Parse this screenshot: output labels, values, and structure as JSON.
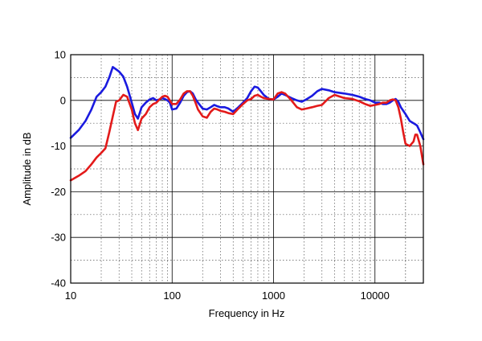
{
  "chart_data": {
    "type": "line",
    "xlabel": "Frequency in Hz",
    "ylabel": "Amplitude in dB",
    "x_scale": "log",
    "xlim": [
      10,
      30000
    ],
    "ylim": [
      -40,
      10
    ],
    "x_tick_labels": [
      "10",
      "100",
      "1000",
      "10000"
    ],
    "y_tick_labels": [
      "10",
      "0",
      "-10",
      "-20",
      "-30",
      "-40"
    ],
    "grid": true,
    "series": [
      {
        "color": "#1a1adf",
        "points": [
          [
            10,
            -8.2
          ],
          [
            12,
            -6.5
          ],
          [
            14,
            -4.5
          ],
          [
            16,
            -2
          ],
          [
            18,
            0.8
          ],
          [
            20,
            1.8
          ],
          [
            22,
            3
          ],
          [
            24,
            5
          ],
          [
            26,
            7.3
          ],
          [
            28,
            6.8
          ],
          [
            30,
            6.3
          ],
          [
            33,
            5.2
          ],
          [
            36,
            3
          ],
          [
            40,
            -0.5
          ],
          [
            43,
            -3
          ],
          [
            46,
            -4
          ],
          [
            50,
            -1.5
          ],
          [
            55,
            -0.5
          ],
          [
            60,
            0.2
          ],
          [
            65,
            0.5
          ],
          [
            70,
            0
          ],
          [
            75,
            0.2
          ],
          [
            80,
            0.5
          ],
          [
            85,
            0.3
          ],
          [
            90,
            0
          ],
          [
            95,
            -0.5
          ],
          [
            100,
            -2
          ],
          [
            110,
            -1.8
          ],
          [
            120,
            -0.5
          ],
          [
            130,
            1
          ],
          [
            140,
            1.8
          ],
          [
            150,
            2
          ],
          [
            160,
            1.5
          ],
          [
            170,
            0.3
          ],
          [
            180,
            -0.5
          ],
          [
            200,
            -1.8
          ],
          [
            220,
            -2
          ],
          [
            240,
            -1.5
          ],
          [
            260,
            -1
          ],
          [
            280,
            -1.3
          ],
          [
            300,
            -1.5
          ],
          [
            330,
            -1.5
          ],
          [
            360,
            -1.8
          ],
          [
            400,
            -2.5
          ],
          [
            450,
            -1.5
          ],
          [
            500,
            -0.5
          ],
          [
            550,
            0.5
          ],
          [
            600,
            2
          ],
          [
            650,
            3
          ],
          [
            700,
            2.8
          ],
          [
            750,
            2
          ],
          [
            800,
            1.2
          ],
          [
            900,
            0.3
          ],
          [
            1000,
            0.2
          ],
          [
            1100,
            0.8
          ],
          [
            1200,
            1.5
          ],
          [
            1300,
            1.2
          ],
          [
            1500,
            0.5
          ],
          [
            1700,
            0
          ],
          [
            1900,
            -0.3
          ],
          [
            2100,
            0.2
          ],
          [
            2400,
            1
          ],
          [
            2700,
            2
          ],
          [
            3000,
            2.5
          ],
          [
            3500,
            2.2
          ],
          [
            4000,
            1.8
          ],
          [
            5000,
            1.5
          ],
          [
            6000,
            1.2
          ],
          [
            7000,
            0.8
          ],
          [
            8000,
            0.3
          ],
          [
            9000,
            0
          ],
          [
            10000,
            -0.5
          ],
          [
            11000,
            -0.5
          ],
          [
            12000,
            -0.8
          ],
          [
            13000,
            -0.8
          ],
          [
            14000,
            -0.5
          ],
          [
            15000,
            0
          ],
          [
            16000,
            0.3
          ],
          [
            17000,
            -0.3
          ],
          [
            18000,
            -1.5
          ],
          [
            20000,
            -3
          ],
          [
            22000,
            -4.5
          ],
          [
            24000,
            -5
          ],
          [
            26000,
            -5.5
          ],
          [
            28000,
            -7
          ],
          [
            30000,
            -8.5
          ]
        ]
      },
      {
        "color": "#e31a1a",
        "points": [
          [
            10,
            -17.5
          ],
          [
            12,
            -16.5
          ],
          [
            14,
            -15.5
          ],
          [
            16,
            -14
          ],
          [
            18,
            -12.5
          ],
          [
            20,
            -11.5
          ],
          [
            22,
            -10.5
          ],
          [
            24,
            -7
          ],
          [
            26,
            -3.5
          ],
          [
            28,
            -0.3
          ],
          [
            30,
            0
          ],
          [
            33,
            1.2
          ],
          [
            36,
            0.8
          ],
          [
            40,
            -2
          ],
          [
            43,
            -5
          ],
          [
            46,
            -6.5
          ],
          [
            50,
            -4
          ],
          [
            55,
            -3
          ],
          [
            60,
            -1.5
          ],
          [
            65,
            -0.8
          ],
          [
            70,
            -0.5
          ],
          [
            75,
            0.2
          ],
          [
            80,
            0.8
          ],
          [
            85,
            1
          ],
          [
            90,
            0.8
          ],
          [
            95,
            0
          ],
          [
            100,
            -0.8
          ],
          [
            110,
            -0.8
          ],
          [
            120,
            0.2
          ],
          [
            130,
            1.5
          ],
          [
            140,
            2
          ],
          [
            150,
            2
          ],
          [
            160,
            1
          ],
          [
            170,
            -0.5
          ],
          [
            180,
            -2
          ],
          [
            200,
            -3.5
          ],
          [
            220,
            -3.8
          ],
          [
            240,
            -2.5
          ],
          [
            260,
            -1.8
          ],
          [
            280,
            -2
          ],
          [
            300,
            -2.3
          ],
          [
            330,
            -2.5
          ],
          [
            360,
            -2.8
          ],
          [
            400,
            -3
          ],
          [
            450,
            -1.8
          ],
          [
            500,
            -0.8
          ],
          [
            550,
            0
          ],
          [
            600,
            0.3
          ],
          [
            650,
            1
          ],
          [
            700,
            1.2
          ],
          [
            750,
            0.8
          ],
          [
            800,
            0.5
          ],
          [
            900,
            0.3
          ],
          [
            1000,
            0.2
          ],
          [
            1100,
            1.5
          ],
          [
            1200,
            1.8
          ],
          [
            1300,
            1.5
          ],
          [
            1500,
            0
          ],
          [
            1700,
            -1.5
          ],
          [
            1900,
            -2
          ],
          [
            2100,
            -1.8
          ],
          [
            2400,
            -1.5
          ],
          [
            2700,
            -1.2
          ],
          [
            3000,
            -1
          ],
          [
            3500,
            0.5
          ],
          [
            4000,
            1.2
          ],
          [
            5000,
            0.5
          ],
          [
            6000,
            0.3
          ],
          [
            7000,
            -0.2
          ],
          [
            8000,
            -0.8
          ],
          [
            9000,
            -1.2
          ],
          [
            10000,
            -1
          ],
          [
            11000,
            -0.8
          ],
          [
            12000,
            -0.5
          ],
          [
            13000,
            -0.5
          ],
          [
            14000,
            0
          ],
          [
            15000,
            0.2
          ],
          [
            16000,
            0
          ],
          [
            17000,
            -1.5
          ],
          [
            18000,
            -4
          ],
          [
            19000,
            -7
          ],
          [
            20000,
            -9.5
          ],
          [
            22000,
            -10
          ],
          [
            24000,
            -9
          ],
          [
            25000,
            -7.5
          ],
          [
            26000,
            -7.5
          ],
          [
            28000,
            -10
          ],
          [
            30000,
            -14
          ]
        ]
      }
    ]
  }
}
